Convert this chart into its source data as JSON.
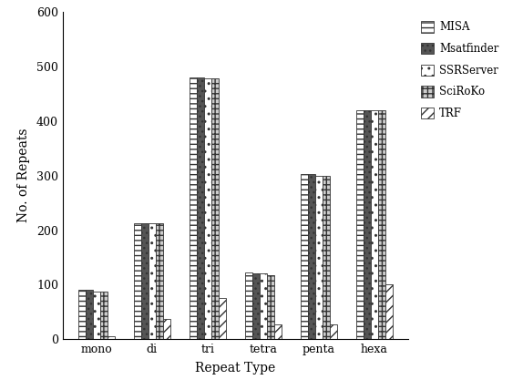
{
  "categories": [
    "mono",
    "di",
    "tri",
    "tetra",
    "penta",
    "hexa"
  ],
  "tools": [
    "MISA",
    "Msatfinder",
    "SSRServer",
    "SciRoKo",
    "TRF"
  ],
  "values": {
    "MISA": [
      90,
      212,
      480,
      122,
      302,
      420
    ],
    "Msatfinder": [
      90,
      212,
      480,
      120,
      302,
      420
    ],
    "SSRServer": [
      88,
      212,
      478,
      120,
      300,
      420
    ],
    "SciRoKo": [
      88,
      212,
      478,
      118,
      300,
      420
    ],
    "TRF": [
      5,
      38,
      75,
      28,
      28,
      100
    ]
  },
  "ylim": [
    0,
    600
  ],
  "yticks": [
    0,
    100,
    200,
    300,
    400,
    500,
    600
  ],
  "xlabel": "Repeat Type",
  "ylabel": "No. of Repeats",
  "background_color": "#ffffff",
  "bar_width": 0.13,
  "legend_labels": [
    "MISA",
    "Msatfinder",
    "SSRServer",
    "SciRoKo",
    "TRF"
  ]
}
